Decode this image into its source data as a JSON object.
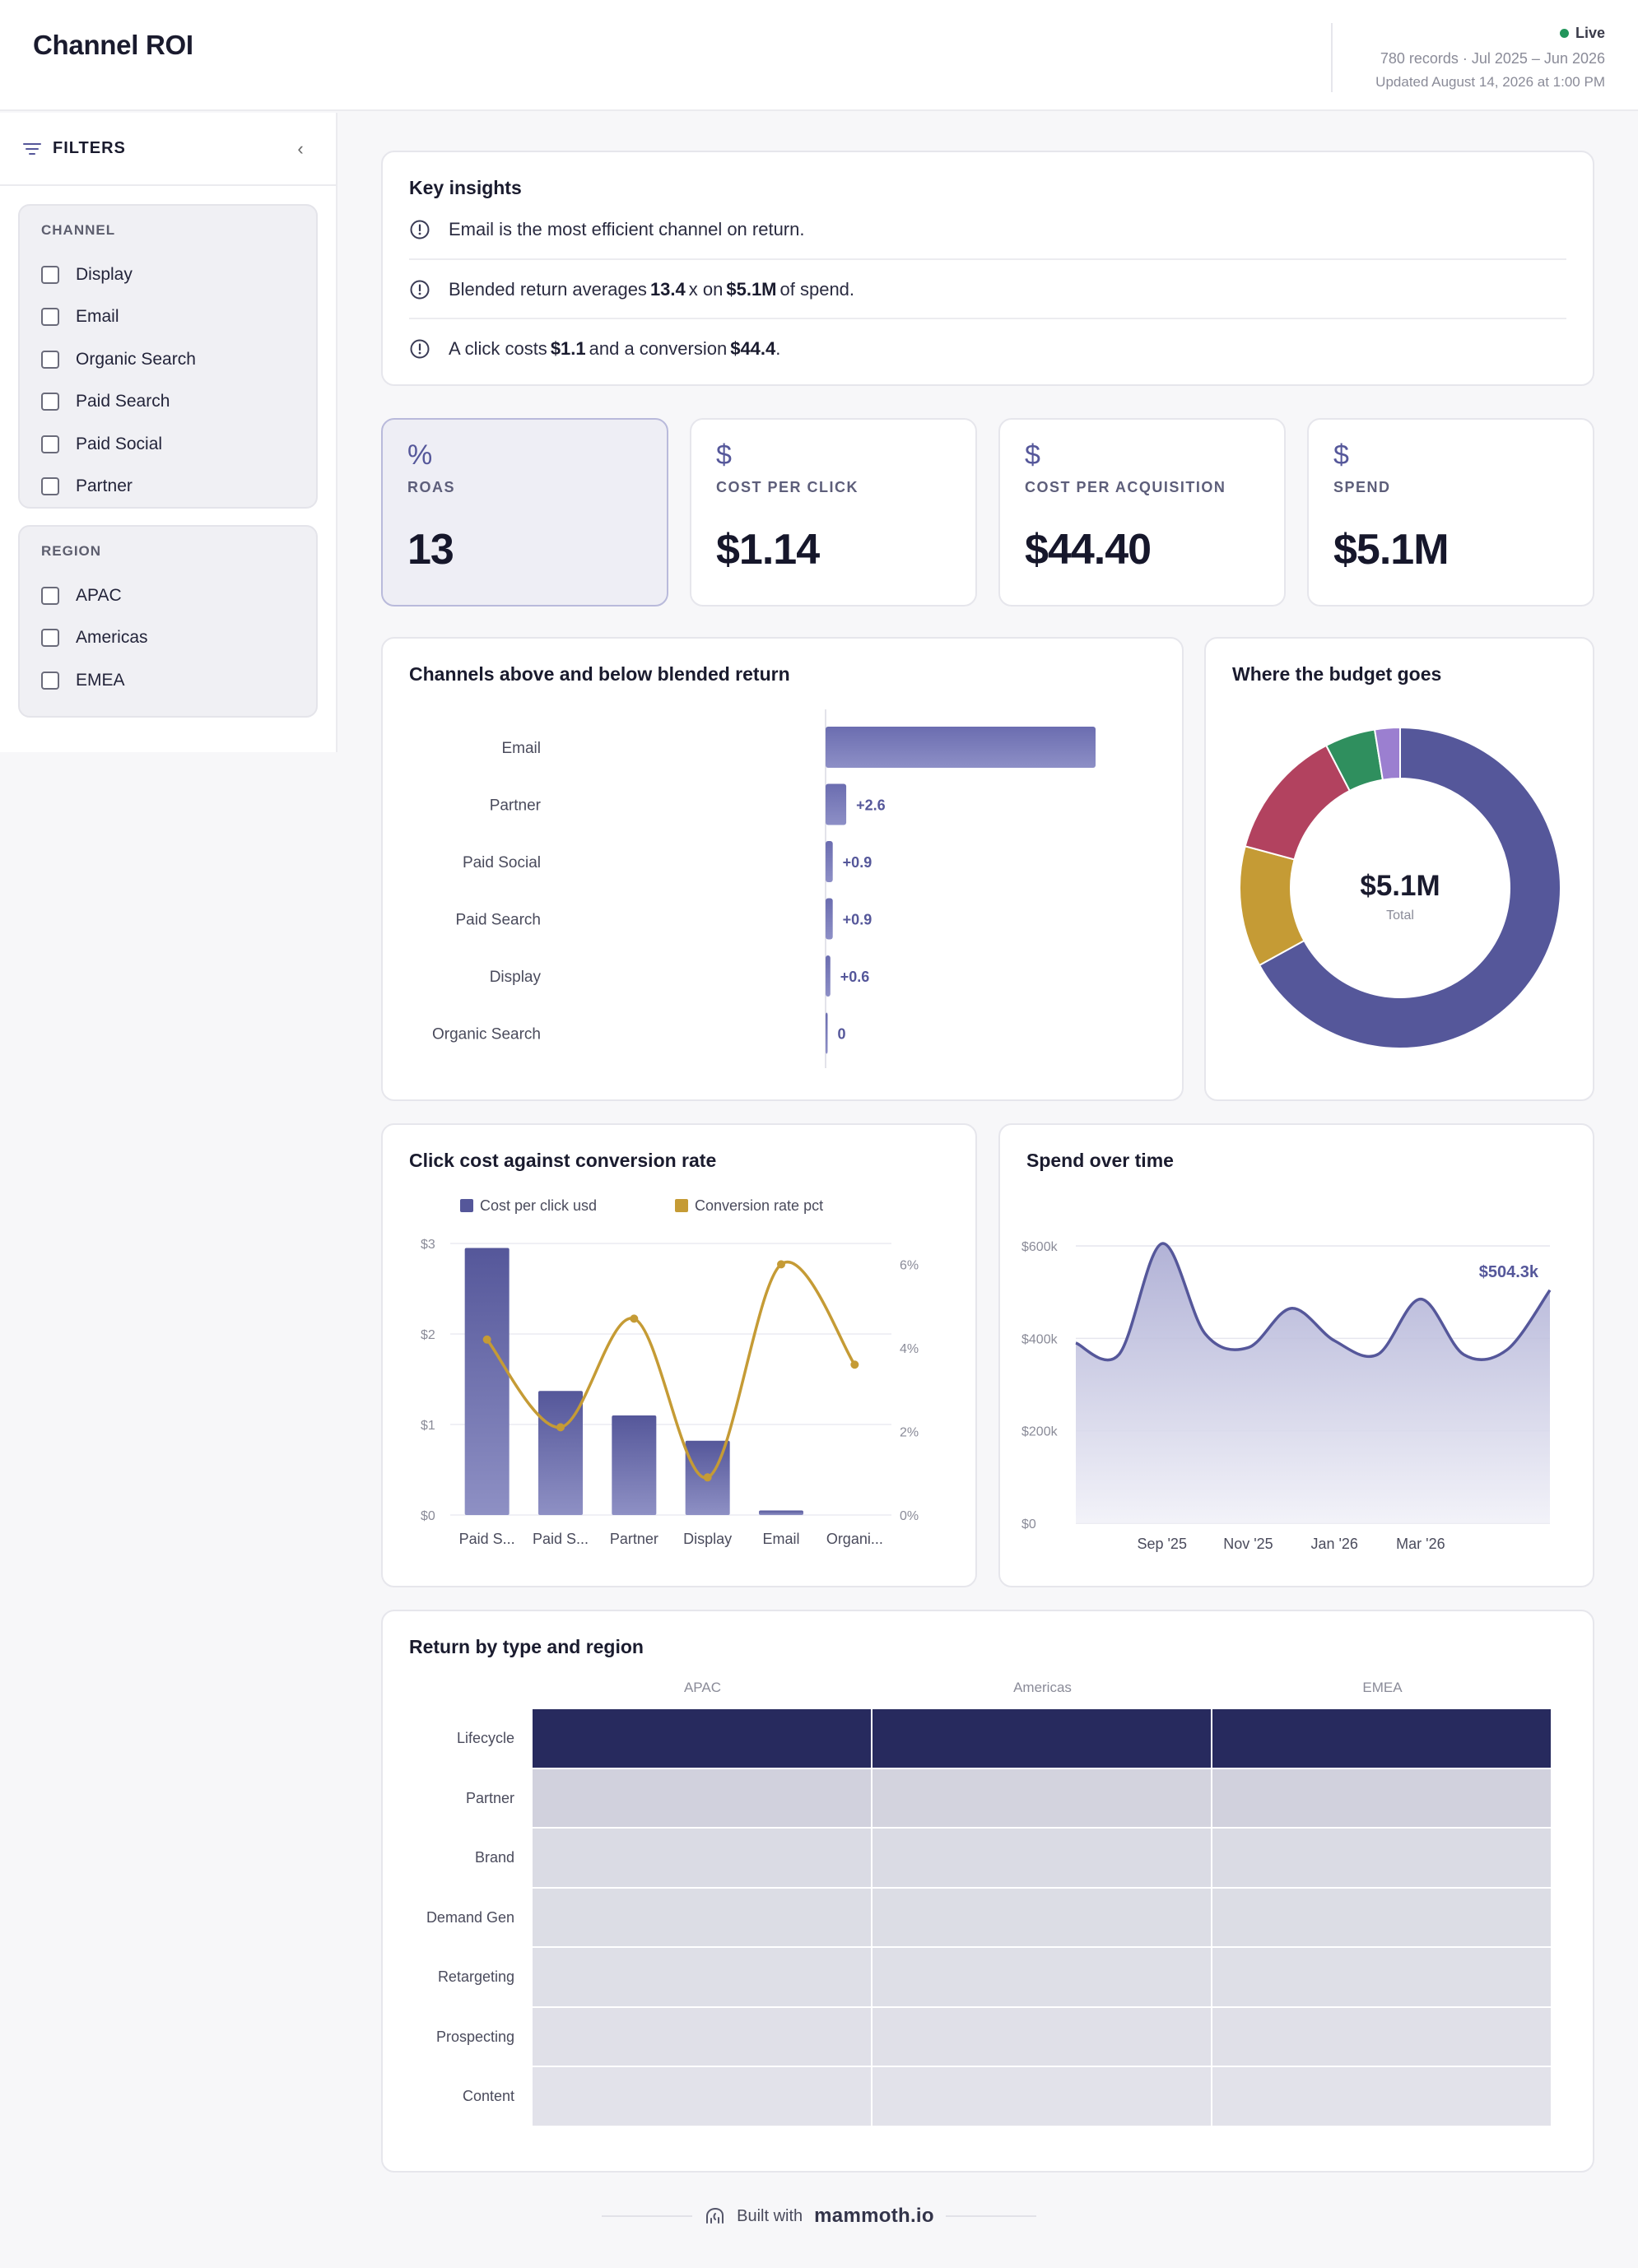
{
  "header": {
    "title": "Channel ROI",
    "status": "Live",
    "meta": "780 records · Jul 2025 – Jun 2026",
    "updated": "Updated August 14, 2026 at 1:00 PM"
  },
  "sidebar": {
    "title": "FILTERS",
    "collapse_glyph": "‹",
    "groups": [
      {
        "title": "CHANNEL",
        "options": [
          "Display",
          "Email",
          "Organic Search",
          "Paid Search",
          "Paid Social",
          "Partner"
        ]
      },
      {
        "title": "REGION",
        "options": [
          "APAC",
          "Americas",
          "EMEA"
        ]
      }
    ]
  },
  "insights": {
    "title": "Key insights",
    "rows": [
      {
        "pre": "Email is the most efficient channel on return.",
        "b1": "",
        "mid": "",
        "b2": "",
        "post": ""
      },
      {
        "pre": "Blended return averages",
        "b1": "13.4",
        "mid": "x on",
        "b2": "$5.1M",
        "post": "of spend."
      },
      {
        "pre": "A click costs",
        "b1": "$1.1",
        "mid": "and a conversion",
        "b2": "$44.4",
        "post": "."
      }
    ]
  },
  "kpis": [
    {
      "icon": "%",
      "icon_name": "percent-icon",
      "label": "ROAS",
      "value": "13"
    },
    {
      "icon": "$",
      "icon_name": "dollar-icon",
      "label": "COST PER CLICK",
      "value": "$1.14"
    },
    {
      "icon": "$",
      "icon_name": "dollar-icon",
      "label": "COST PER ACQUISITION",
      "value": "$44.40"
    },
    {
      "icon": "$",
      "icon_name": "dollar-icon",
      "label": "SPEND",
      "value": "$5.1M"
    }
  ],
  "colors": {
    "primary": "#55579a",
    "gold": "#c59b35",
    "crimson": "#b2425f",
    "green": "#2f8f5e",
    "violet": "#9b7fd0",
    "heat_dark": "#272a5e",
    "heat_light": "#e6e6ee"
  },
  "chart_data": [
    {
      "type": "bar",
      "title": "Channels above and below blended return",
      "categories": [
        "Email",
        "Partner",
        "Paid Social",
        "Paid Search",
        "Display",
        "Organic Search"
      ],
      "values": [
        34.0,
        2.6,
        0.9,
        0.9,
        0.6,
        0
      ],
      "labels": [
        "",
        "+2.6",
        "+0.9",
        "+0.9",
        "+0.6",
        "0"
      ]
    },
    {
      "type": "pie",
      "title": "Where the budget goes",
      "center_value": "$5.1M",
      "center_label": "Total",
      "values": [
        0.66,
        0.12,
        0.13,
        0.05,
        0.025
      ],
      "slice_colors": [
        "#55579a",
        "#c59b35",
        "#b2425f",
        "#2f8f5e",
        "#9b7fd0"
      ]
    },
    {
      "type": "bar",
      "title": "Click cost against conversion rate",
      "categories": [
        "Paid S...",
        "Paid S...",
        "Partner",
        "Display",
        "Email",
        "Organi..."
      ],
      "series": [
        {
          "name": "Cost per click usd",
          "values": [
            2.95,
            1.37,
            1.1,
            0.82,
            0.05,
            0
          ]
        },
        {
          "name": "Conversion rate pct",
          "values": [
            4.2,
            2.1,
            4.7,
            0.9,
            6.0,
            3.6
          ]
        }
      ],
      "y_ticks": [
        "$0",
        "$1",
        "$2",
        "$3"
      ],
      "ylim": [
        0,
        3
      ],
      "y2_ticks": [
        "0%",
        "2%",
        "4%",
        "6%"
      ],
      "y2lim": [
        0,
        6.5
      ]
    },
    {
      "type": "area",
      "title": "Spend over time",
      "x": [
        "Jul '25",
        "Aug '25",
        "Sep '25",
        "Oct '25",
        "Nov '25",
        "Dec '25",
        "Jan '26",
        "Feb '26",
        "Mar '26",
        "Apr '26",
        "May '26",
        "Jun '26"
      ],
      "x_tick_labels": [
        "Sep '25",
        "Nov '25",
        "Jan '26",
        "Mar '26"
      ],
      "values": [
        390,
        365,
        605,
        410,
        380,
        465,
        395,
        365,
        485,
        365,
        375,
        504.3
      ],
      "y_ticks": [
        "$0",
        "$200k",
        "$400k",
        "$600k"
      ],
      "ylim": [
        0,
        600
      ],
      "last_label": "$504.3k"
    },
    {
      "type": "heatmap",
      "title": "Return by type and region",
      "columns": [
        "APAC",
        "Americas",
        "EMEA"
      ],
      "rows": [
        "Lifecycle",
        "Partner",
        "Brand",
        "Demand Gen",
        "Retargeting",
        "Prospecting",
        "Content"
      ],
      "values": [
        [
          1.0,
          1.0,
          1.0
        ],
        [
          0.12,
          0.11,
          0.12
        ],
        [
          0.07,
          0.07,
          0.07
        ],
        [
          0.06,
          0.06,
          0.06
        ],
        [
          0.05,
          0.05,
          0.05
        ],
        [
          0.04,
          0.04,
          0.04
        ],
        [
          0.03,
          0.03,
          0.03
        ]
      ]
    }
  ],
  "footer": {
    "built_with": "Built with",
    "brand": "mammoth.io"
  }
}
